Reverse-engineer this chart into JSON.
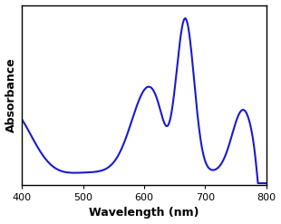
{
  "line_color": "#1a1acd",
  "line_width": 1.5,
  "xlabel": "Wavelength (nm)",
  "ylabel": "Absorbance",
  "xlabel_fontsize": 9,
  "ylabel_fontsize": 9,
  "xlabel_fontweight": "bold",
  "ylabel_fontweight": "bold",
  "xlim": [
    400,
    800
  ],
  "ylim_factor": 1.08,
  "xticks": [
    400,
    500,
    600,
    700,
    800
  ],
  "tick_fontsize": 8,
  "background_color": "#ffffff",
  "spine_color": "#000000",
  "figsize": [
    3.1,
    2.47
  ],
  "dpi": 100
}
